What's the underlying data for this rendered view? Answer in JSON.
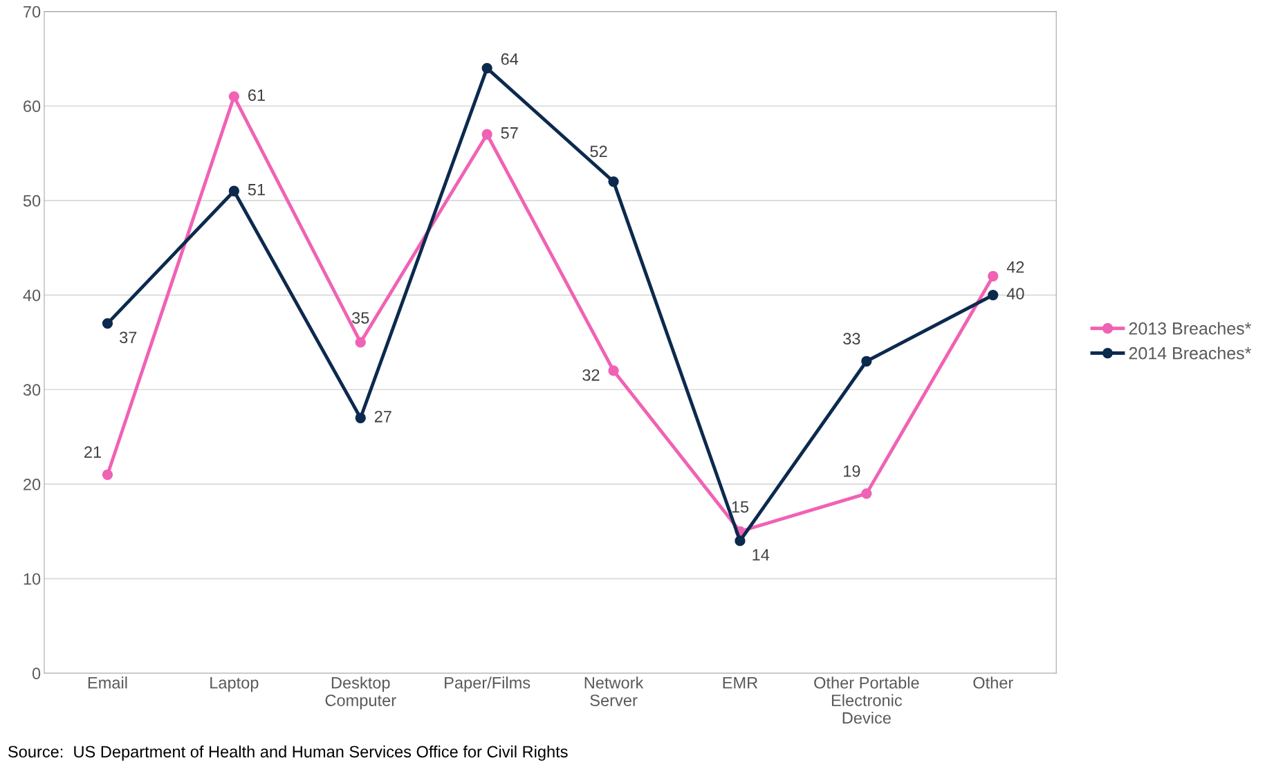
{
  "chart_data": {
    "type": "line",
    "categories": [
      "Email",
      "Laptop",
      "Desktop\nComputer",
      "Paper/Films",
      "Network\nServer",
      "EMR",
      "Other Portable\nElectronic\nDevice",
      "Other"
    ],
    "series": [
      {
        "name": "2013 Breaches*",
        "color": "#f062b4",
        "values": [
          21,
          61,
          35,
          57,
          32,
          15,
          19,
          42
        ]
      },
      {
        "name": "2014 Breaches*",
        "color": "#0c2a4e",
        "values": [
          37,
          51,
          27,
          64,
          52,
          14,
          33,
          40
        ]
      }
    ],
    "ylim": [
      0,
      70
    ],
    "yticks": [
      0,
      10,
      20,
      30,
      40,
      50,
      60,
      70
    ],
    "grid": "y",
    "legend": "right",
    "marker": "circle",
    "line_style": "solid",
    "data_labels": true,
    "annotations": [
      "Source:  US Department of Health and Human Services Office for Civil Rights"
    ]
  }
}
